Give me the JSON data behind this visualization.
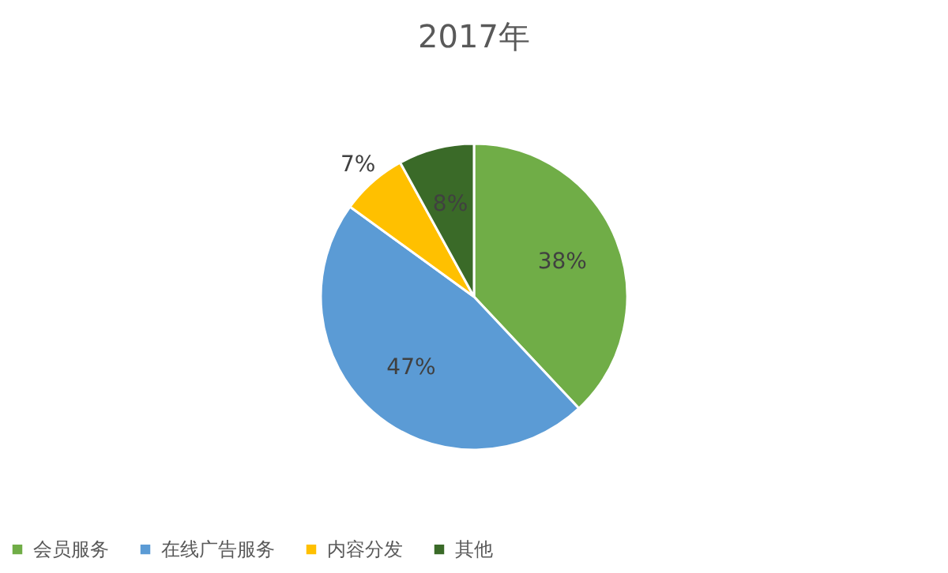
{
  "chart_data": {
    "type": "pie",
    "title": "2017年",
    "categories": [
      "会员服务",
      "在线广告服务",
      "内容分发",
      "其他"
    ],
    "values": [
      38,
      47,
      7,
      8
    ],
    "colors": [
      "#70ad47",
      "#5b9bd5",
      "#ffc000",
      "#3a6a28"
    ],
    "value_labels": [
      "38%",
      "47%",
      "7%",
      "8%"
    ],
    "legend": "bottom"
  }
}
